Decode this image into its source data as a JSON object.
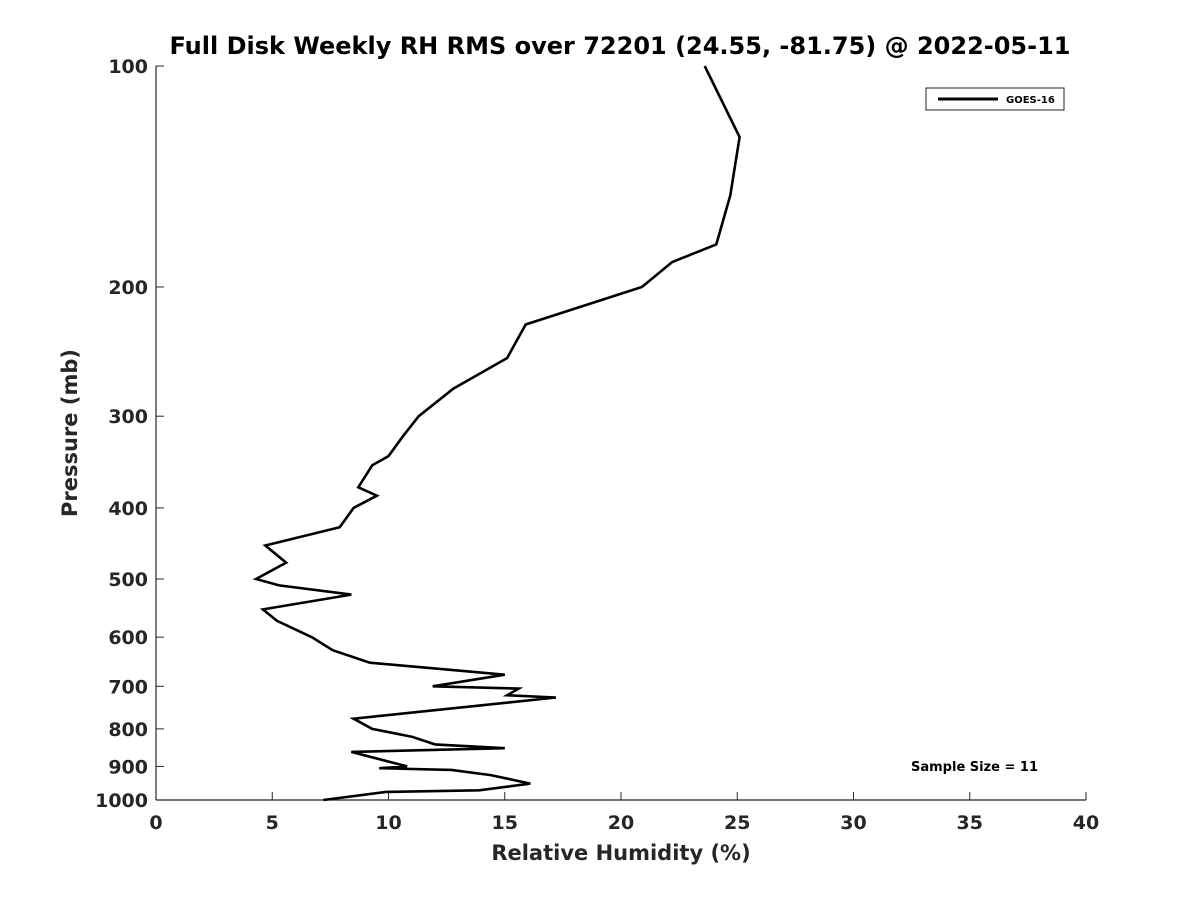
{
  "chart_data": {
    "type": "line",
    "title": "Full Disk Weekly RH RMS over 72201 (24.55, -81.75) @ 2022-05-11",
    "xlabel": "Relative Humidity (%)",
    "ylabel": "Pressure (mb)",
    "xlim": [
      0,
      40
    ],
    "ylim": [
      1000,
      100
    ],
    "y_scale": "log",
    "y_reversed": true,
    "x_ticks": [
      0,
      5,
      10,
      15,
      20,
      25,
      30,
      35,
      40
    ],
    "y_ticks": [
      100,
      200,
      300,
      400,
      500,
      600,
      700,
      800,
      900,
      1000
    ],
    "grid": false,
    "legend_position": "top-right",
    "annotation": "Sample Size = 11",
    "line_color": "#000000",
    "series": [
      {
        "name": "GOES-16",
        "points": [
          [
            23.6,
            100
          ],
          [
            25.1,
            125
          ],
          [
            24.7,
            150
          ],
          [
            24.1,
            175
          ],
          [
            22.2,
            185
          ],
          [
            20.9,
            200
          ],
          [
            15.9,
            225
          ],
          [
            15.1,
            250
          ],
          [
            12.8,
            275
          ],
          [
            11.3,
            300
          ],
          [
            10.6,
            320
          ],
          [
            10.0,
            340
          ],
          [
            9.3,
            350
          ],
          [
            8.7,
            375
          ],
          [
            9.5,
            385
          ],
          [
            8.5,
            400
          ],
          [
            7.9,
            425
          ],
          [
            4.7,
            450
          ],
          [
            5.6,
            475
          ],
          [
            4.3,
            500
          ],
          [
            5.3,
            510
          ],
          [
            8.4,
            525
          ],
          [
            4.6,
            550
          ],
          [
            5.2,
            570
          ],
          [
            6.7,
            600
          ],
          [
            7.6,
            625
          ],
          [
            9.2,
            650
          ],
          [
            15.0,
            675
          ],
          [
            11.9,
            700
          ],
          [
            15.6,
            705
          ],
          [
            15.1,
            720
          ],
          [
            17.2,
            725
          ],
          [
            8.5,
            775
          ],
          [
            9.3,
            800
          ],
          [
            11.0,
            820
          ],
          [
            12.0,
            840
          ],
          [
            15.0,
            850
          ],
          [
            8.4,
            860
          ],
          [
            10.8,
            900
          ],
          [
            9.6,
            905
          ],
          [
            12.7,
            910
          ],
          [
            14.4,
            925
          ],
          [
            16.1,
            950
          ],
          [
            13.9,
            970
          ],
          [
            9.9,
            975
          ],
          [
            7.2,
            1000
          ]
        ]
      }
    ]
  }
}
